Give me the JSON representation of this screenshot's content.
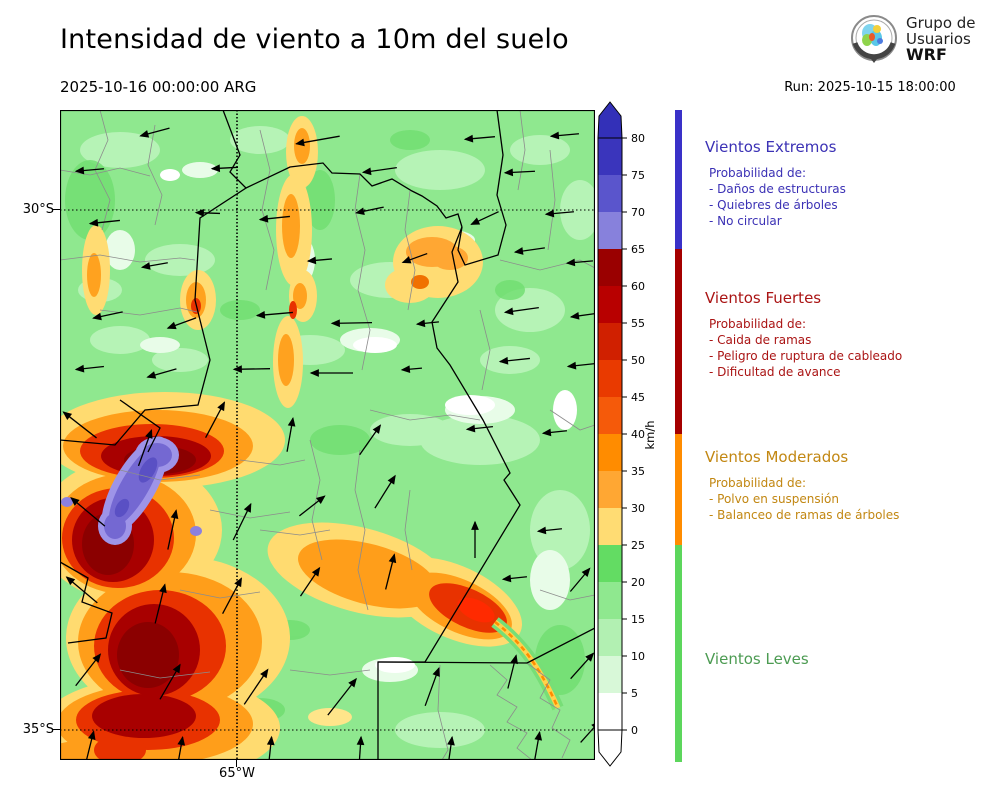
{
  "header": {
    "title": "Intensidad de viento a 10m del suelo",
    "valid_time": "2025-10-16 00:00:00 ARG",
    "run_label": "Run: 2025-10-15 18:00:00"
  },
  "logo": {
    "line1": "Grupo de",
    "line2": "Usuarios",
    "line3": "WRF"
  },
  "map": {
    "lat_labels": [
      "30°S",
      "35°S"
    ],
    "lon_label": "65°W",
    "arrows": [
      [
        95,
        22,
        195,
        30
      ],
      [
        258,
        30,
        190,
        44
      ],
      [
        420,
        28,
        185,
        30
      ],
      [
        505,
        25,
        185,
        28
      ],
      [
        30,
        60,
        185,
        28
      ],
      [
        165,
        58,
        183,
        26
      ],
      [
        320,
        60,
        188,
        34
      ],
      [
        460,
        62,
        183,
        30
      ],
      [
        45,
        112,
        186,
        30
      ],
      [
        148,
        103,
        178,
        24
      ],
      [
        215,
        108,
        186,
        30
      ],
      [
        310,
        100,
        192,
        28
      ],
      [
        425,
        108,
        205,
        30
      ],
      [
        500,
        103,
        185,
        28
      ],
      [
        95,
        155,
        190,
        26
      ],
      [
        260,
        150,
        185,
        24
      ],
      [
        355,
        148,
        200,
        26
      ],
      [
        470,
        140,
        188,
        30
      ],
      [
        520,
        152,
        185,
        26
      ],
      [
        48,
        205,
        192,
        30
      ],
      [
        122,
        213,
        200,
        30
      ],
      [
        215,
        204,
        185,
        36
      ],
      [
        292,
        213,
        181,
        40
      ],
      [
        368,
        213,
        186,
        22
      ],
      [
        462,
        200,
        188,
        34
      ],
      [
        525,
        205,
        188,
        28
      ],
      [
        30,
        258,
        186,
        28
      ],
      [
        102,
        263,
        196,
        30
      ],
      [
        192,
        259,
        181,
        36
      ],
      [
        272,
        263,
        180,
        42
      ],
      [
        352,
        259,
        185,
        20
      ],
      [
        455,
        250,
        186,
        30
      ],
      [
        522,
        255,
        186,
        28
      ],
      [
        20,
        315,
        142,
        42
      ],
      [
        85,
        338,
        70,
        38
      ],
      [
        155,
        310,
        62,
        40
      ],
      [
        230,
        325,
        80,
        34
      ],
      [
        310,
        330,
        55,
        36
      ],
      [
        420,
        318,
        186,
        26
      ],
      [
        495,
        322,
        186,
        24
      ],
      [
        28,
        402,
        140,
        44
      ],
      [
        112,
        420,
        78,
        40
      ],
      [
        182,
        412,
        64,
        40
      ],
      [
        252,
        396,
        38,
        32
      ],
      [
        325,
        382,
        58,
        38
      ],
      [
        415,
        430,
        90,
        36
      ],
      [
        490,
        420,
        186,
        24
      ],
      [
        22,
        480,
        140,
        40
      ],
      [
        100,
        494,
        76,
        40
      ],
      [
        172,
        486,
        62,
        40
      ],
      [
        250,
        472,
        56,
        34
      ],
      [
        330,
        462,
        76,
        36
      ],
      [
        455,
        468,
        186,
        24
      ],
      [
        520,
        470,
        50,
        30
      ],
      [
        28,
        560,
        52,
        40
      ],
      [
        110,
        572,
        60,
        40
      ],
      [
        196,
        577,
        56,
        42
      ],
      [
        282,
        587,
        52,
        46
      ],
      [
        372,
        577,
        70,
        40
      ],
      [
        452,
        562,
        76,
        34
      ],
      [
        522,
        556,
        48,
        34
      ],
      [
        30,
        636,
        76,
        30
      ],
      [
        120,
        642,
        80,
        30
      ],
      [
        210,
        642,
        84,
        30
      ],
      [
        300,
        642,
        86,
        30
      ],
      [
        390,
        642,
        82,
        30
      ],
      [
        477,
        637,
        80,
        30
      ],
      [
        530,
        622,
        48,
        28
      ]
    ]
  },
  "colorbar": {
    "unit": "km/h",
    "tick_values": [
      0,
      5,
      10,
      15,
      20,
      25,
      30,
      35,
      40,
      45,
      50,
      55,
      60,
      65,
      70,
      75,
      80
    ],
    "segment_colors_low_to_high": [
      "#FFFFFF",
      "#D8F8D8",
      "#B2F0B2",
      "#8FE88F",
      "#63DC63",
      "#FFDC73",
      "#FFA733",
      "#FF8C00",
      "#F55A0A",
      "#E93A00",
      "#D02000",
      "#B80000",
      "#9A0000",
      "#8781DC",
      "#5A55CC",
      "#3A35BC"
    ],
    "over_color": "#3330B8",
    "under_color": "#FFFFFF"
  },
  "category_bar": {
    "colors": {
      "extremos": "#3A31C8",
      "fuertes": "#A50000",
      "moderados": "#FF8C00",
      "leves": "#5CD65C"
    }
  },
  "legend": {
    "sections": [
      {
        "title": "Vientos Extremos",
        "color": "#3B31B5",
        "intro": "Probabilidad de:",
        "items": [
          "- Daños de estructuras",
          "- Quiebres de árboles",
          "- No circular"
        ]
      },
      {
        "title": "Vientos Fuertes",
        "color": "#AA1414",
        "intro": "Probabilidad de:",
        "items": [
          "- Caida de ramas",
          "- Peligro de ruptura de cableado",
          "- Dificultad de avance"
        ]
      },
      {
        "title": "Vientos Moderados",
        "color": "#C28712",
        "intro": "Probabilidad de:",
        "items": [
          "- Polvo en suspensión",
          "- Balanceo de ramas de árboles"
        ]
      },
      {
        "title": "Vientos Leves",
        "color": "#4C9B52",
        "intro": "",
        "items": []
      }
    ]
  }
}
